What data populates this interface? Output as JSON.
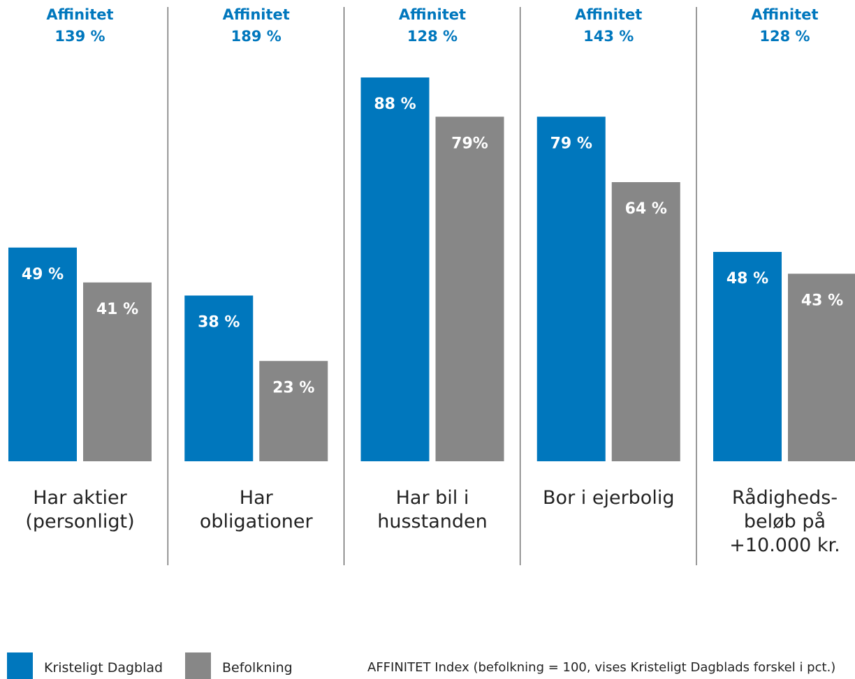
{
  "chart_data": {
    "type": "bar",
    "categories": [
      "Har aktier\n(personligt)",
      "Har\nobligationer",
      "Har bil i\nhusstanden",
      "Bor i ejerbolig",
      "Rådigheds-\nbeløb på\n+10.000 kr."
    ],
    "series": [
      {
        "name": "Kristeligt Dagblad",
        "color": "#0077bd",
        "values": [
          49,
          38,
          88,
          79,
          48
        ],
        "value_labels": [
          "49 %",
          "38 %",
          "88 %",
          "79 %",
          "48 %"
        ]
      },
      {
        "name": "Befolkning",
        "color": "#878787",
        "values": [
          41,
          23,
          79,
          64,
          43
        ],
        "value_labels": [
          "41 %",
          "23 %",
          "79%",
          "64 %",
          "43 %"
        ]
      }
    ],
    "affinity_title": "Affinitet",
    "affinity": [
      139,
      189,
      128,
      143,
      128
    ],
    "affinity_labels": [
      "139 %",
      "189 %",
      "128 %",
      "143 %",
      "128 %"
    ],
    "note": "AFFINITET Index (befolkning = 100, vises Kristeligt Dagblads forskel i pct.)",
    "ylim": [
      0,
      100
    ]
  }
}
